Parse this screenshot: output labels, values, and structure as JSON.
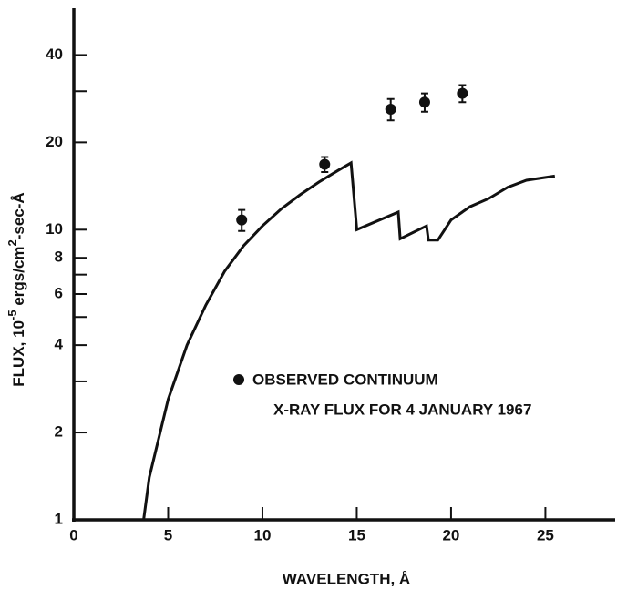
{
  "chart_data": {
    "type": "line",
    "y_label_parts": [
      "FLUX, 10",
      "-5",
      " ergs/cm",
      "2",
      "-sec-Å"
    ],
    "x_label": "WAVELENGTH, Å",
    "xlim": [
      0,
      28.7
    ],
    "xticks": [
      0,
      5,
      10,
      15,
      20,
      25
    ],
    "ylim": [
      1,
      58
    ],
    "log_y": true,
    "yticks": [
      1,
      2,
      4,
      6,
      8,
      10,
      20,
      40
    ],
    "y_minor_ticks": [
      3,
      5,
      7,
      30
    ],
    "color": "#111111",
    "series": [
      {
        "name": "X-RAY FLUX FOR 4 JANUARY 1967",
        "x": [
          3.7,
          4,
          5,
          6,
          7,
          8,
          9,
          10,
          11,
          12,
          13,
          14,
          14.7,
          15,
          17.2,
          17.3,
          18.7,
          18.8,
          19.3,
          20,
          21,
          22,
          23,
          24,
          25.5
        ],
        "y": [
          1,
          1.4,
          2.6,
          4,
          5.5,
          7.2,
          8.8,
          10.3,
          11.8,
          13.2,
          14.6,
          16,
          17,
          10,
          11.5,
          9.3,
          10.3,
          9.2,
          9.2,
          10.8,
          12,
          12.8,
          14,
          14.8,
          15.3
        ]
      }
    ],
    "points": {
      "name": "OBSERVED CONTINUUM",
      "x": [
        8.9,
        13.3,
        16.8,
        18.6,
        20.6
      ],
      "y": [
        10.8,
        16.8,
        26,
        27.5,
        29.5
      ],
      "errors": [
        0.9,
        1,
        2.2,
        2,
        2
      ]
    }
  }
}
